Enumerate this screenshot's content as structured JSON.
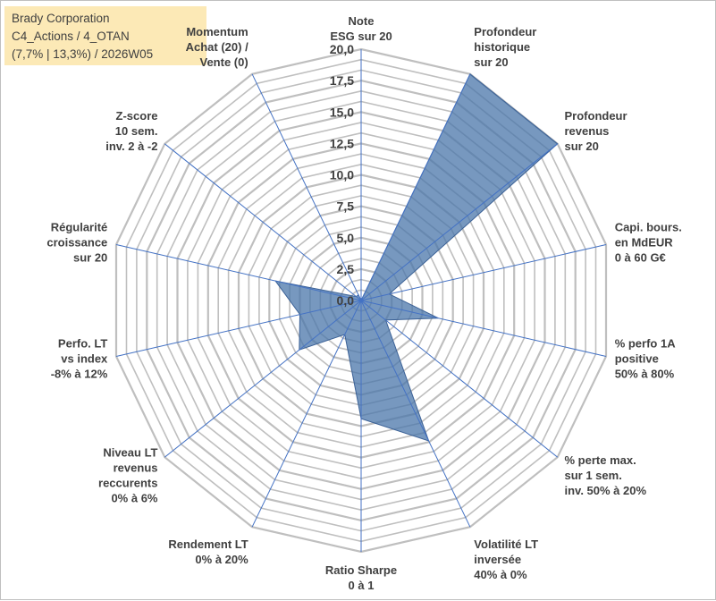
{
  "header": {
    "line1": "Brady Corporation",
    "line2": "C4_Actions / 4_OTAN",
    "line3": "(7,7% | 13,3%) / 2026W05"
  },
  "chart_data": {
    "type": "radar",
    "title": "Brady Corporation",
    "subtitle": "C4_Actions / 4_OTAN (7,7% | 13,3%) / 2026W05",
    "rmin": 0,
    "rmax": 20,
    "tick_step": 2.5,
    "tick_labels": [
      "0,0",
      "2,5",
      "5,0",
      "7,5",
      "10,0",
      "12,5",
      "15,0",
      "17,5",
      "20,0"
    ],
    "minor_rings": 2,
    "axes": [
      {
        "label": [
          "Note",
          "ESG sur 20"
        ]
      },
      {
        "label": [
          "Profondeur",
          "historique",
          "sur 20"
        ]
      },
      {
        "label": [
          "Profondeur",
          "revenus",
          "sur 20"
        ]
      },
      {
        "label": [
          "Capi. bours.",
          "en MdEUR",
          "0 à 60 G€"
        ]
      },
      {
        "label": [
          "% perfo 1A",
          "positive",
          "50% à 80%"
        ]
      },
      {
        "label": [
          "% perte max.",
          "sur 1 sem.",
          "inv. 50% à 20%"
        ]
      },
      {
        "label": [
          "Volatilité LT",
          "inversée",
          "40% à 0%"
        ]
      },
      {
        "label": [
          "Ratio Sharpe",
          "0 à 1"
        ]
      },
      {
        "label": [
          "Rendement LT",
          "0% à 20%"
        ]
      },
      {
        "label": [
          "Niveau LT",
          "revenus",
          "reccurents",
          "0% à 6%"
        ]
      },
      {
        "label": [
          "Perfo. LT",
          "vs index",
          "-8% à 12%"
        ]
      },
      {
        "label": [
          "Régularité",
          "croissance",
          "sur 20"
        ]
      },
      {
        "label": [
          "Z-score",
          "10 sem.",
          "inv. 2 à -2"
        ]
      },
      {
        "label": [
          "Momentum",
          "Achat (20) /",
          "Vente (0)"
        ]
      }
    ],
    "series": [
      {
        "values": [
          0,
          20,
          20,
          2.3,
          6.3,
          2.5,
          12.4,
          9.4,
          3,
          6.3,
          5,
          7,
          0.5,
          0.5
        ],
        "color": "#4a76aa",
        "fill_opacity": 0.75
      }
    ],
    "grid_color": "#bfbfbf",
    "spoke_color": "#4472c4"
  }
}
